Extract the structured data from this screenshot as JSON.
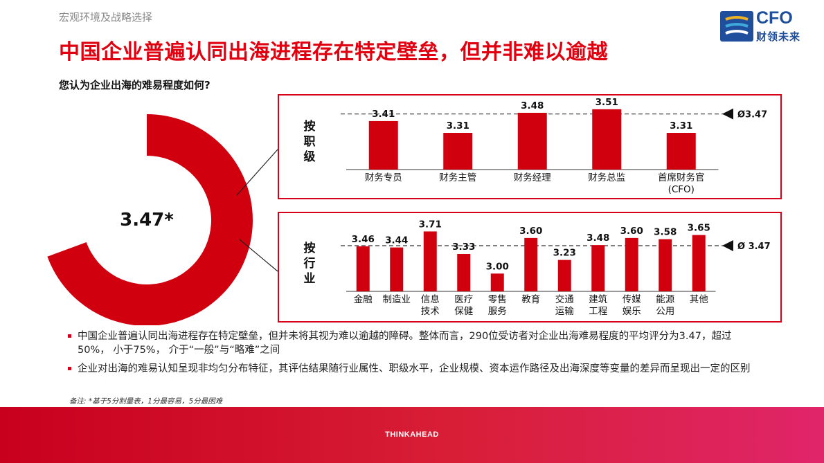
{
  "header": {
    "section": "宏观环境及战略选择",
    "title": "中国企业普遍认同出海进程存在特定壁垒，但并非难以逾越",
    "question": "您认为企业出海的难易程度如何?"
  },
  "logo": {
    "text": "CFO",
    "subtitle": "财领未来",
    "colors": [
      "#1f4e9c",
      "#f0b323",
      "#3fa9dc"
    ]
  },
  "donut": {
    "label": "3.47*",
    "value": 3.47,
    "max": 5,
    "color": "#d0000f"
  },
  "panels": {
    "role_label": [
      "按",
      "职",
      "级"
    ],
    "industry_label": [
      "按",
      "行",
      "业"
    ]
  },
  "chart_data": [
    {
      "type": "bar",
      "categories": [
        [
          "财务专员"
        ],
        [
          "财务主管"
        ],
        [
          "财务经理"
        ],
        [
          "财务总监"
        ],
        [
          "首席财务官",
          "(CFO)"
        ]
      ],
      "values": [
        3.41,
        3.31,
        3.48,
        3.51,
        3.31
      ],
      "average": 3.47,
      "average_label": "Ø3.47",
      "ylim": [
        3.0,
        3.55
      ],
      "color": "#d0000f"
    },
    {
      "type": "bar",
      "categories": [
        [
          "金融"
        ],
        [
          "制造业"
        ],
        [
          "信息",
          "技术"
        ],
        [
          "医疗",
          "保健"
        ],
        [
          "零售",
          "服务"
        ],
        [
          "教育"
        ],
        [
          "交通",
          "运输"
        ],
        [
          "建筑",
          "工程"
        ],
        [
          "传媒",
          "娱乐"
        ],
        [
          "能源",
          "公用"
        ],
        [
          "其他"
        ]
      ],
      "values": [
        3.46,
        3.44,
        3.71,
        3.33,
        3.0,
        3.6,
        3.23,
        3.48,
        3.6,
        3.58,
        3.65
      ],
      "average": 3.47,
      "average_label": "Ø 3.47",
      "ylim": [
        2.7,
        3.75
      ],
      "color": "#d0000f"
    }
  ],
  "bullets": [
    "中国企业普遍认同出海进程存在特定壁垒，但并未将其视为难以逾越的障碍。整体而言，290位受访者对企业出海难易程度的平均评分为3.47，超过50%， 小于75%， 介于“一般”与“略难”之间",
    "企业对出海的难易认知呈现非均匀分布特征，其评估结果随行业属性、职级水平，企业规模、资本运作路径及出海深度等变量的差异而呈现出一定的区别"
  ],
  "note": "备注: *基于5分制量表，1分最容易，5分最困难",
  "footer": {
    "text": "THINKAHEAD"
  }
}
